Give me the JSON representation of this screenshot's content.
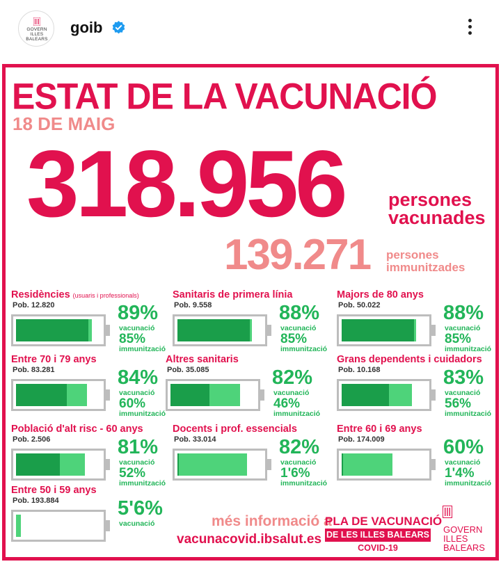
{
  "header": {
    "avatar_lines": [
      "GOVERN",
      "ILLES",
      "BALEARS"
    ],
    "username": "goib",
    "more_icon": "more-vertical-icon",
    "verified_icon": "verified-badge-icon"
  },
  "colors": {
    "brand_red": "#e1114e",
    "pink": "#f08a8a",
    "green": "#22b559",
    "fill_vaccination": "#4ed37a",
    "fill_immunization": "#1a9e4a",
    "battery_border": "#bdbdbd"
  },
  "infographic": {
    "title": "ESTAT DE LA VACUNACIÓ",
    "date": "18 DE MAIG",
    "vaccinated_number": "318.956",
    "vaccinated_label_1": "persones",
    "vaccinated_label_2": "vacunades",
    "immunized_number": "139.271",
    "immunized_label_1": "persones",
    "immunized_label_2": "immunitzades",
    "groups": [
      {
        "name": "Residències",
        "note": "(usuaris i professionals)",
        "pob": "Pob. 12.820",
        "vac_pct": "89%",
        "vac_label": "vacunació",
        "imm_pct": "85%",
        "imm_label": "immunització",
        "vac_value": 89,
        "imm_value": 85
      },
      {
        "name": "Sanitaris de primera línia",
        "note": "",
        "pob": "Pob. 9.558",
        "vac_pct": "88%",
        "vac_label": "vacunació",
        "imm_pct": "85%",
        "imm_label": "immunització",
        "vac_value": 88,
        "imm_value": 85
      },
      {
        "name": "Majors de 80 anys",
        "note": "",
        "pob": "Pob. 50.022",
        "vac_pct": "88%",
        "vac_label": "vacunació",
        "imm_pct": "85%",
        "imm_label": "immunització",
        "vac_value": 88,
        "imm_value": 85
      },
      {
        "name": "Entre 70 i 79 anys",
        "note": "",
        "pob": "Pob. 83.281",
        "vac_pct": "84%",
        "vac_label": "vacunació",
        "imm_pct": "60%",
        "imm_label": "immunització",
        "vac_value": 84,
        "imm_value": 60
      },
      {
        "name": "Altres sanitaris",
        "note": "",
        "pob": "Pob. 35.085",
        "vac_pct": "82%",
        "vac_label": "vacunació",
        "imm_pct": "46%",
        "imm_label": "immunització",
        "vac_value": 82,
        "imm_value": 46
      },
      {
        "name": "Grans dependents i cuidadors",
        "note": "",
        "pob": "Pob. 10.168",
        "vac_pct": "83%",
        "vac_label": "vacunació",
        "imm_pct": "56%",
        "imm_label": "immunització",
        "vac_value": 83,
        "imm_value": 56
      },
      {
        "name": "Població d'alt risc - 60 anys",
        "note": "",
        "pob": "Pob. 2.506",
        "vac_pct": "81%",
        "vac_label": "vacunació",
        "imm_pct": "52%",
        "imm_label": "immunització",
        "vac_value": 81,
        "imm_value": 52
      },
      {
        "name": "Docents i prof. essencials",
        "note": "",
        "pob": "Pob. 33.014",
        "vac_pct": "82%",
        "vac_label": "vacunació",
        "imm_pct": "1'6%",
        "imm_label": "immunització",
        "vac_value": 82,
        "imm_value": 1.6
      },
      {
        "name": "Entre 60 i 69 anys",
        "note": "",
        "pob": "Pob. 174.009",
        "vac_pct": "60%",
        "vac_label": "vacunació",
        "imm_pct": "1'4%",
        "imm_label": "immunització",
        "vac_value": 60,
        "imm_value": 1.4
      },
      {
        "name": "Entre 50 i 59 anys",
        "note": "",
        "pob": "Pob. 193.884",
        "vac_pct": "5'6%",
        "vac_label": "vacunació",
        "imm_pct": "",
        "imm_label": "",
        "vac_value": 5.6,
        "imm_value": 0
      }
    ],
    "more_info": "més informació a",
    "more_link": "vacunacovid.ibsalut.es",
    "plan_line_1": "PLA DE VACUNACIÓ",
    "plan_line_2": "DE LES ILLES BALEARS",
    "plan_line_3": "COVID-19",
    "gov_lines": [
      "GOVERN",
      "ILLES",
      "BALEARS"
    ]
  }
}
